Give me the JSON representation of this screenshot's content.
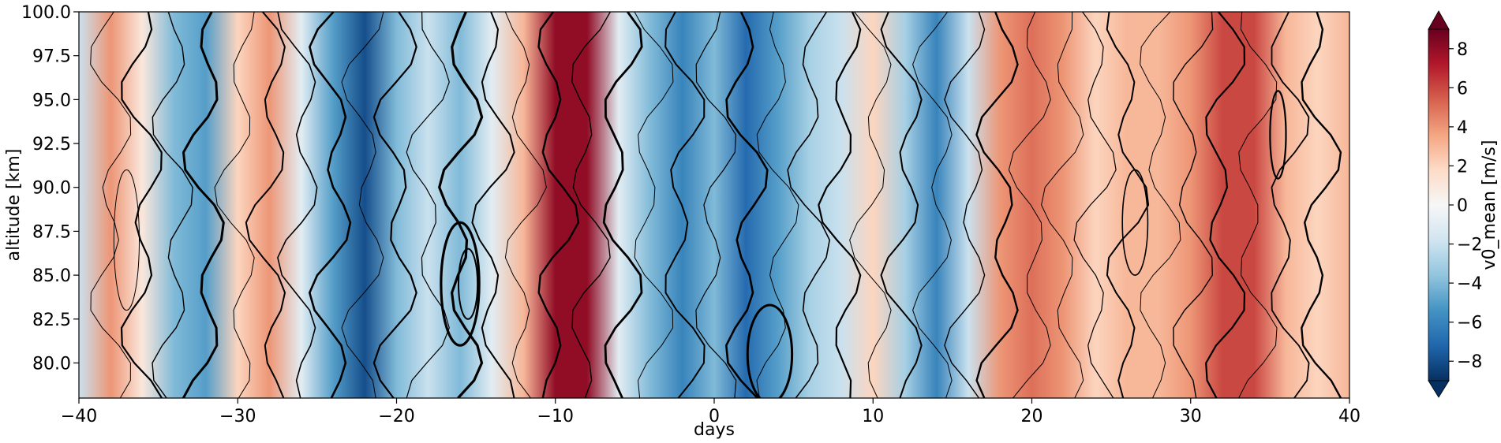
{
  "chart_data": {
    "type": "heatmap",
    "title": "",
    "xlabel": "days",
    "ylabel": "altitude [km]",
    "xlim": [
      -40,
      40
    ],
    "ylim": [
      78,
      100
    ],
    "x_ticks": [
      -40,
      -30,
      -20,
      -10,
      0,
      10,
      20,
      30,
      40
    ],
    "x_tick_labels": [
      "−40",
      "−30",
      "−20",
      "−10",
      "0",
      "10",
      "20",
      "30",
      "40"
    ],
    "y_ticks": [
      80,
      82.5,
      85,
      87.5,
      90,
      92.5,
      95,
      97.5,
      100
    ],
    "y_tick_labels": [
      "80.0",
      "82.5",
      "85.0",
      "87.5",
      "90.0",
      "92.5",
      "95.0",
      "97.5",
      "100.0"
    ],
    "colormap": "RdBu_r",
    "colorbar": {
      "label": "v0_mean [m/s]",
      "range": [
        -9,
        9
      ],
      "ticks": [
        -8,
        -6,
        -4,
        -2,
        0,
        2,
        4,
        6,
        8
      ],
      "tick_labels": [
        "−8",
        "−6",
        "−4",
        "−2",
        "0",
        "2",
        "4",
        "6",
        "8"
      ],
      "extend": "both"
    },
    "profile_note": "estimated v0_mean (m/s) vs days at mid-altitude",
    "days": [
      -40,
      -38,
      -36,
      -34,
      -32,
      -30,
      -28,
      -26,
      -24,
      -22,
      -20,
      -18,
      -16,
      -14,
      -12,
      -10,
      -8,
      -6,
      -4,
      -2,
      0,
      2,
      4,
      6,
      8,
      10,
      12,
      14,
      16,
      18,
      20,
      22,
      24,
      26,
      28,
      30,
      32,
      34,
      36,
      38,
      40
    ],
    "v0_mean_profile": [
      -2,
      4,
      1,
      -4,
      -5,
      2,
      4,
      -1,
      -5,
      -8,
      -4,
      -2,
      -4,
      -1,
      3,
      8,
      8,
      -1,
      -4,
      -6,
      -4,
      -7,
      -5,
      -3,
      -2,
      2,
      -3,
      -6,
      -2,
      4,
      5,
      4,
      2,
      3,
      3,
      4,
      6,
      6,
      3,
      2,
      3
    ],
    "contour_overlay": "black contour lines of varying thickness"
  }
}
